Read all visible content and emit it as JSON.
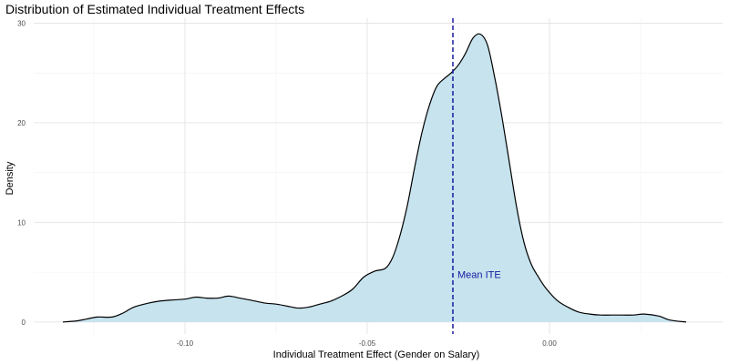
{
  "chart_data": {
    "type": "area",
    "title": "Distribution of Estimated Individual Treatment Effects",
    "xlabel": "Individual Treatment Effect (Gender on Salary)",
    "ylabel": "Density",
    "xlim": [
      -0.1415,
      0.0475
    ],
    "ylim": [
      -1.2,
      30.5
    ],
    "x_ticks": [
      -0.1,
      -0.05,
      0.0
    ],
    "x_tick_labels": [
      "-0.10",
      "-0.05",
      "0.00"
    ],
    "y_ticks": [
      0,
      10,
      20,
      30
    ],
    "y_tick_labels": [
      "0",
      "10",
      "20",
      "30"
    ],
    "grid": true,
    "legend": "none",
    "series": [
      {
        "x": [
          -0.1335,
          -0.13,
          -0.127,
          -0.124,
          -0.12,
          -0.117,
          -0.114,
          -0.11,
          -0.107,
          -0.104,
          -0.1,
          -0.097,
          -0.094,
          -0.091,
          -0.088,
          -0.085,
          -0.082,
          -0.078,
          -0.075,
          -0.072,
          -0.069,
          -0.066,
          -0.063,
          -0.06,
          -0.057,
          -0.054,
          -0.051,
          -0.048,
          -0.045,
          -0.043,
          -0.041,
          -0.039,
          -0.037,
          -0.035,
          -0.033,
          -0.031,
          -0.029,
          -0.027,
          -0.025,
          -0.023,
          -0.021,
          -0.019,
          -0.017,
          -0.015,
          -0.013,
          -0.011,
          -0.009,
          -0.007,
          -0.005,
          -0.003,
          -0.001,
          0.002,
          0.005,
          0.008,
          0.011,
          0.014,
          0.017,
          0.02,
          0.023,
          0.026,
          0.03,
          0.033,
          0.0375
        ],
        "y": [
          0.0,
          0.1,
          0.3,
          0.5,
          0.5,
          0.9,
          1.5,
          1.9,
          2.1,
          2.2,
          2.3,
          2.5,
          2.4,
          2.4,
          2.6,
          2.4,
          2.2,
          1.9,
          1.8,
          1.6,
          1.4,
          1.5,
          1.8,
          2.1,
          2.6,
          3.3,
          4.5,
          5.1,
          5.4,
          6.5,
          8.7,
          11.7,
          15.5,
          19.0,
          21.7,
          23.6,
          24.4,
          25.0,
          25.8,
          27.0,
          28.5,
          28.9,
          27.8,
          24.5,
          20.5,
          16.0,
          11.5,
          8.0,
          5.8,
          4.5,
          3.4,
          2.2,
          1.5,
          1.0,
          0.8,
          0.7,
          0.7,
          0.7,
          0.7,
          0.8,
          0.6,
          0.2,
          0.0
        ],
        "fill": "#c6e3ee",
        "stroke": "#000000"
      }
    ],
    "annotations": [
      {
        "type": "vline",
        "x": -0.0265,
        "label": "Mean ITE",
        "label_y": 4.8,
        "color": "#1a1aa0",
        "style": "dashed"
      }
    ]
  }
}
